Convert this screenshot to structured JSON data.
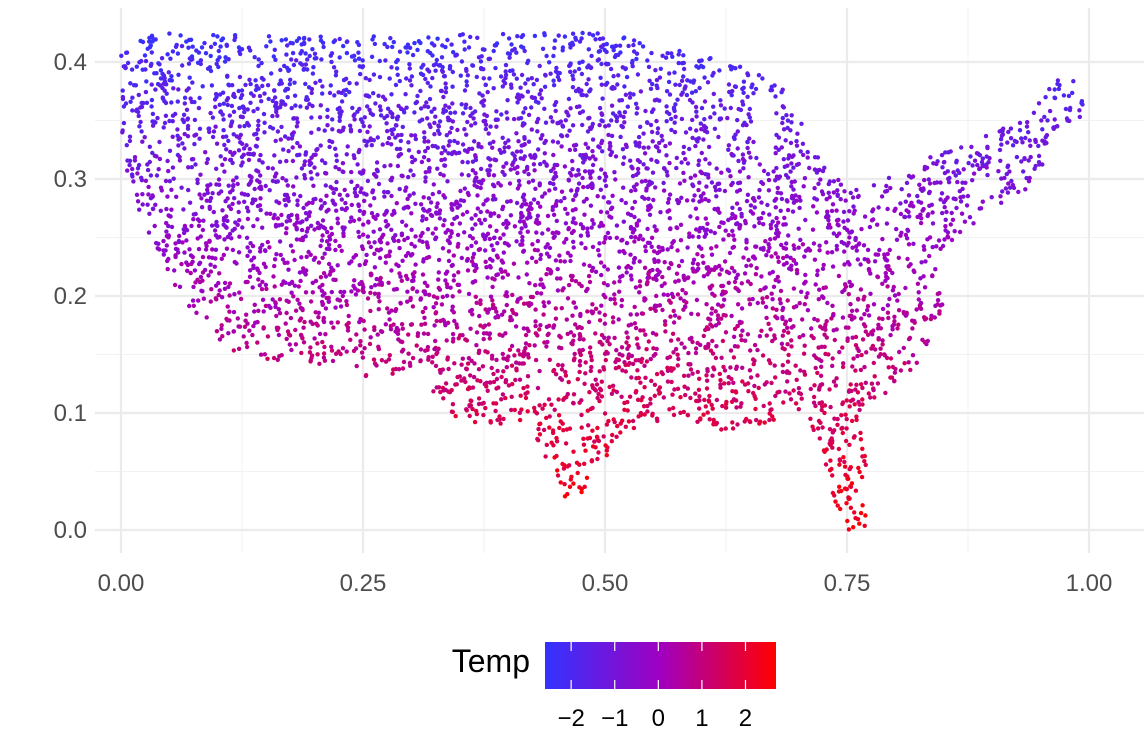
{
  "chart_data": {
    "type": "scatter",
    "title": "",
    "xlabel": "",
    "ylabel": "",
    "xlim": [
      0,
      1
    ],
    "ylim": [
      0,
      0.43
    ],
    "x_ticks": [
      0,
      0.25,
      0.5,
      0.75,
      1
    ],
    "x_tick_labels": [
      "0.00",
      "0.25",
      "0.50",
      "0.75",
      "1.00"
    ],
    "y_ticks": [
      0,
      0.1,
      0.2,
      0.3,
      0.4
    ],
    "y_tick_labels": [
      "0.0",
      "0.1",
      "0.2",
      "0.3",
      "0.4"
    ],
    "grid": true,
    "legend": {
      "title": "Temp",
      "placement": "bottom",
      "range": [
        -2.6,
        2.7
      ],
      "ticks": [
        -2,
        -1,
        0,
        1,
        2
      ],
      "tick_labels": [
        "−2",
        "−1",
        "0",
        "1",
        "2"
      ],
      "low_color": "#3333ff",
      "mid_color": "#a000c0",
      "high_color": "#ff0000"
    },
    "outline": [
      [
        0.0,
        0.41
      ],
      [
        0.03,
        0.425
      ],
      [
        0.1,
        0.423
      ],
      [
        0.2,
        0.423
      ],
      [
        0.3,
        0.424
      ],
      [
        0.4,
        0.424
      ],
      [
        0.45,
        0.425
      ],
      [
        0.5,
        0.425
      ],
      [
        0.55,
        0.415
      ],
      [
        0.6,
        0.405
      ],
      [
        0.63,
        0.4
      ],
      [
        0.66,
        0.39
      ],
      [
        0.7,
        0.37
      ],
      [
        0.71,
        0.34
      ],
      [
        0.73,
        0.315
      ],
      [
        0.75,
        0.29
      ],
      [
        0.79,
        0.3
      ],
      [
        0.83,
        0.32
      ],
      [
        0.88,
        0.33
      ],
      [
        0.92,
        0.35
      ],
      [
        0.96,
        0.38
      ],
      [
        0.98,
        0.395
      ],
      [
        1.0,
        0.355
      ],
      [
        0.96,
        0.34
      ],
      [
        0.95,
        0.3
      ],
      [
        0.9,
        0.27
      ],
      [
        0.86,
        0.25
      ],
      [
        0.84,
        0.22
      ],
      [
        0.85,
        0.19
      ],
      [
        0.83,
        0.15
      ],
      [
        0.8,
        0.12
      ],
      [
        0.76,
        0.1
      ],
      [
        0.77,
        0.06
      ],
      [
        0.77,
        0.0
      ],
      [
        0.75,
        0.0
      ],
      [
        0.73,
        0.04
      ],
      [
        0.72,
        0.08
      ],
      [
        0.7,
        0.1
      ],
      [
        0.66,
        0.09
      ],
      [
        0.62,
        0.085
      ],
      [
        0.57,
        0.095
      ],
      [
        0.52,
        0.085
      ],
      [
        0.49,
        0.05
      ],
      [
        0.47,
        0.025
      ],
      [
        0.45,
        0.03
      ],
      [
        0.44,
        0.06
      ],
      [
        0.41,
        0.095
      ],
      [
        0.37,
        0.085
      ],
      [
        0.34,
        0.1
      ],
      [
        0.3,
        0.14
      ],
      [
        0.26,
        0.125
      ],
      [
        0.22,
        0.14
      ],
      [
        0.18,
        0.145
      ],
      [
        0.14,
        0.145
      ],
      [
        0.11,
        0.155
      ],
      [
        0.07,
        0.19
      ],
      [
        0.04,
        0.23
      ],
      [
        0.02,
        0.27
      ],
      [
        0.0,
        0.32
      ]
    ],
    "exclusions": [
      {
        "center": [
          0.665,
          0.345
        ],
        "radius": [
          0.012,
          0.035
        ]
      },
      {
        "center": [
          0.72,
          0.385
        ],
        "radius": [
          0.03,
          0.018
        ]
      }
    ],
    "temp_model": {
      "description": "temperature rises toward the south",
      "north_value": -2.3,
      "south_value": 2.6,
      "east_west_bias": 0.4
    },
    "point_count": 5200
  }
}
